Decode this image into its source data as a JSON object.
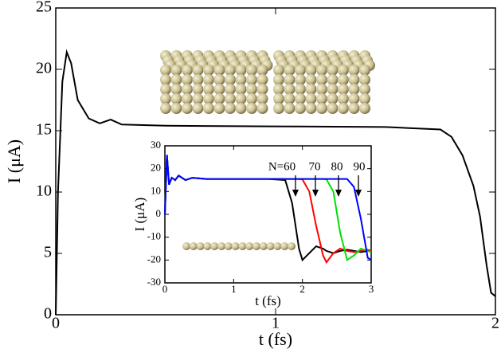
{
  "chart_data": [
    {
      "type": "line",
      "xlabel": "t (fs)",
      "ylabel": "I (μA)",
      "x": [
        0,
        0.01,
        0.03,
        0.05,
        0.07,
        0.1,
        0.15,
        0.2,
        0.25,
        0.3,
        0.5,
        1.0,
        1.5,
        1.75,
        1.8,
        1.85,
        1.9,
        1.93,
        1.96,
        1.98,
        2.0
      ],
      "values": [
        0,
        10,
        19,
        21.4,
        20.5,
        17.5,
        16,
        15.6,
        15.9,
        15.5,
        15.4,
        15.35,
        15.3,
        15.1,
        14.5,
        13,
        10.5,
        8,
        4,
        1.8,
        1.5
      ],
      "color": "#000000",
      "xlim": [
        0,
        2
      ],
      "ylim": [
        0,
        25
      ],
      "xticks": [
        0,
        1,
        2
      ],
      "yticks": [
        0,
        5,
        10,
        15,
        20,
        25
      ]
    },
    {
      "type": "line",
      "xlabel": "t (fs)",
      "ylabel": "I (μA)",
      "annotations": [
        "N=60",
        "70",
        "80",
        "90"
      ],
      "x": [
        0,
        0.03,
        0.06,
        0.1,
        0.15,
        0.2,
        0.3,
        0.4,
        0.6,
        1.0,
        1.5,
        1.75,
        1.85,
        1.95,
        2.0,
        2.1,
        2.2,
        2.3,
        2.35,
        2.45,
        2.55,
        2.65,
        2.75,
        2.85,
        2.95,
        3.0
      ],
      "series": [
        {
          "color": "#000000",
          "values": [
            0,
            26,
            13,
            16,
            15,
            17,
            15,
            16,
            15.5,
            15.5,
            15.5,
            15,
            5,
            -15,
            -20,
            -17,
            -14,
            -15,
            -16,
            -17,
            -16,
            -15.5,
            -16,
            -16.5,
            -16,
            -16
          ]
        },
        {
          "color": "#ff0000",
          "values": [
            0,
            26,
            13,
            16,
            15,
            17,
            15,
            16,
            15.5,
            15.5,
            15.5,
            15.5,
            15.5,
            15.5,
            15.3,
            10,
            -5,
            -18,
            -21,
            -17,
            -15,
            -16,
            -16.5,
            -16,
            -15.5,
            -16
          ]
        },
        {
          "color": "#00e000",
          "values": [
            0,
            26,
            13,
            16,
            15,
            17,
            15,
            16,
            15.5,
            15.5,
            15.5,
            15.5,
            15.5,
            15.5,
            15.5,
            15.5,
            15.5,
            15.5,
            15.3,
            10,
            -8,
            -20,
            -18,
            -15,
            -16,
            -16.5
          ]
        },
        {
          "color": "#0000ff",
          "values": [
            0,
            26,
            13,
            16,
            15,
            17,
            15,
            16,
            15.5,
            15.5,
            15.5,
            15.5,
            15.5,
            15.5,
            15.5,
            15.5,
            15.5,
            15.5,
            15.5,
            15.5,
            15.5,
            15.5,
            12,
            -2,
            -19,
            -20
          ]
        }
      ],
      "xlim": [
        0,
        3
      ],
      "ylim": [
        -30,
        30
      ],
      "xticks": [
        0,
        1,
        2,
        3
      ],
      "yticks": [
        -30,
        -20,
        -10,
        0,
        10,
        20,
        30
      ]
    }
  ]
}
